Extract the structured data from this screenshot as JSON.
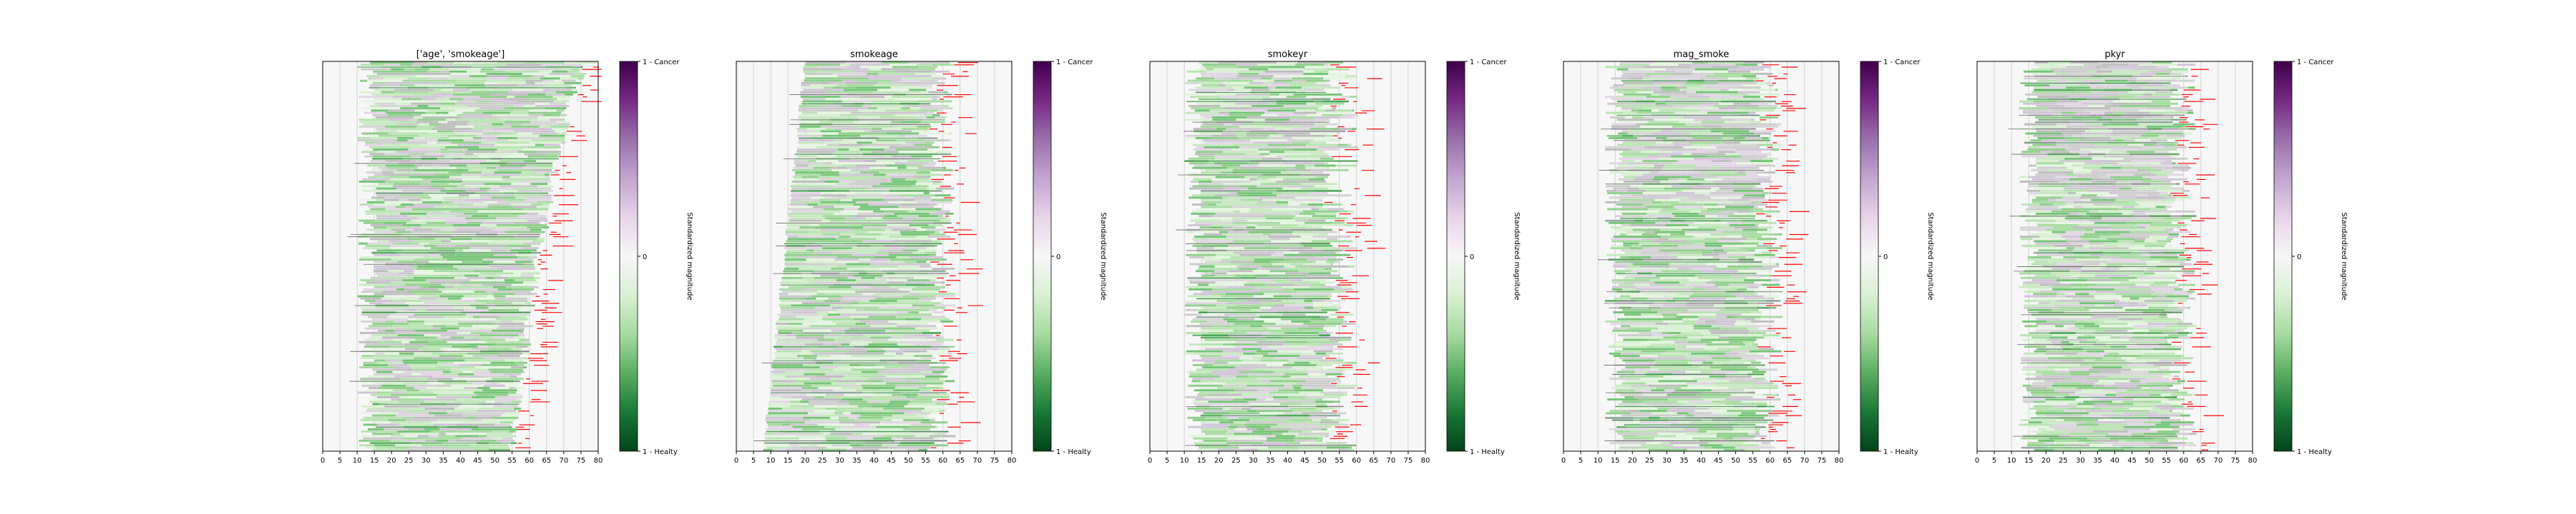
{
  "figure": {
    "colorbar": {
      "top_label": "1 - Cancer",
      "middle_label": "0",
      "bottom_label": "1 - Healty",
      "axis_label": "Standardized magnitude",
      "colors": [
        "#00441b",
        "#1b7837",
        "#5aae61",
        "#a6dba0",
        "#d9f0d3",
        "#f7f7f7",
        "#e7d4e8",
        "#c2a5cf",
        "#9970ab",
        "#762a83",
        "#40004b"
      ]
    }
  },
  "chart_data": [
    {
      "type": "bar",
      "title": "['age', 'smokeage']",
      "xlim": [
        0,
        80
      ],
      "xticks": [
        "0",
        "5",
        "10",
        "15",
        "20",
        "25",
        "30",
        "35",
        "40",
        "45",
        "50",
        "55",
        "60",
        "65",
        "70",
        "75",
        "80"
      ],
      "row_count": 170,
      "start_range": [
        10,
        16
      ],
      "end_range": [
        55,
        78
      ],
      "event_color": "#ff0000"
    },
    {
      "type": "bar",
      "title": "smokeage",
      "xlim": [
        0,
        80
      ],
      "xticks": [
        "0",
        "5",
        "10",
        "15",
        "20",
        "25",
        "30",
        "35",
        "40",
        "45",
        "50",
        "55",
        "60",
        "65",
        "70",
        "75",
        "80"
      ],
      "row_count": 170,
      "start_range": [
        8,
        20
      ],
      "end_range": [
        55,
        80
      ],
      "event_color": "#ff0000"
    },
    {
      "type": "bar",
      "title": "smokeyr",
      "xlim": [
        0,
        80
      ],
      "xticks": [
        "0",
        "5",
        "10",
        "15",
        "20",
        "25",
        "30",
        "35",
        "40",
        "45",
        "50",
        "55",
        "60",
        "65",
        "70",
        "75",
        "80"
      ],
      "row_count": 170,
      "start_range": [
        10,
        16
      ],
      "end_range": [
        50,
        80
      ],
      "event_color": "#ff0000"
    },
    {
      "type": "bar",
      "title": "mag_smoke",
      "xlim": [
        0,
        80
      ],
      "xticks": [
        "0",
        "5",
        "10",
        "15",
        "20",
        "25",
        "30",
        "35",
        "40",
        "45",
        "50",
        "55",
        "60",
        "65",
        "70",
        "75",
        "80"
      ],
      "row_count": 170,
      "start_range": [
        12,
        18
      ],
      "end_range": [
        55,
        80
      ],
      "event_color": "#ff0000"
    },
    {
      "type": "bar",
      "title": "pkyr",
      "xlim": [
        0,
        80
      ],
      "xticks": [
        "0",
        "5",
        "10",
        "15",
        "20",
        "25",
        "30",
        "35",
        "40",
        "45",
        "50",
        "55",
        "60",
        "65",
        "70",
        "75",
        "80"
      ],
      "row_count": 170,
      "start_range": [
        12,
        18
      ],
      "end_range": [
        55,
        80
      ],
      "event_color": "#ff0000"
    }
  ]
}
